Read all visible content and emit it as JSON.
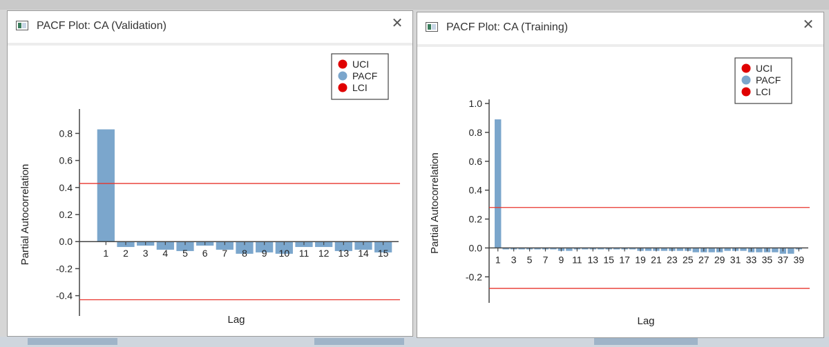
{
  "windows": [
    {
      "title": "PACF Plot: CA (Validation)",
      "chart_data": {
        "type": "bar",
        "ylabel": "Partial Autocorrelation",
        "xlabel": "Lag",
        "ylim": [
          -0.55,
          0.95
        ],
        "yticks": [
          -0.4,
          -0.2,
          0.0,
          0.2,
          0.4,
          0.6,
          0.8
        ],
        "ytick_labels": [
          "-0.4",
          "-0.2",
          "0.0",
          "0.2",
          "0.4",
          "0.6",
          "0.8"
        ],
        "x": [
          1,
          2,
          3,
          4,
          5,
          6,
          7,
          8,
          9,
          10,
          11,
          12,
          13,
          14,
          15
        ],
        "xtick_labels": [
          "1",
          "2",
          "3",
          "4",
          "5",
          "6",
          "7",
          "8",
          "9",
          "10",
          "11",
          "12",
          "13",
          "14",
          "15"
        ],
        "series": [
          {
            "name": "PACF",
            "color": "#7ba6cc",
            "values": [
              0.83,
              -0.04,
              -0.03,
              -0.06,
              -0.07,
              -0.03,
              -0.06,
              -0.09,
              -0.08,
              -0.09,
              -0.04,
              -0.04,
              -0.07,
              -0.06,
              -0.08
            ]
          },
          {
            "name": "UCI",
            "color": "#e8332a",
            "value": 0.43
          },
          {
            "name": "LCI",
            "color": "#e8332a",
            "value": -0.43
          }
        ],
        "legend": {
          "position": "top-right",
          "items": [
            {
              "label": "UCI",
              "color": "#e00000"
            },
            {
              "label": "PACF",
              "color": "#7ba6cc"
            },
            {
              "label": "LCI",
              "color": "#e00000"
            }
          ]
        }
      }
    },
    {
      "title": "PACF Plot: CA (Training)",
      "chart_data": {
        "type": "bar",
        "ylabel": "Partial Autocorrelation",
        "xlabel": "Lag",
        "ylim": [
          -0.38,
          1.0
        ],
        "yticks": [
          -0.2,
          0.0,
          0.2,
          0.4,
          0.6,
          0.8,
          1.0
        ],
        "ytick_labels": [
          "-0.2",
          "0.0",
          "0.2",
          "0.4",
          "0.6",
          "0.8",
          "1.0"
        ],
        "x": [
          1,
          2,
          3,
          4,
          5,
          6,
          7,
          8,
          9,
          10,
          11,
          12,
          13,
          14,
          15,
          16,
          17,
          18,
          19,
          20,
          21,
          22,
          23,
          24,
          25,
          26,
          27,
          28,
          29,
          30,
          31,
          32,
          33,
          34,
          35,
          36,
          37,
          38,
          39
        ],
        "xtick_labels": [
          "1",
          "3",
          "5",
          "7",
          "9",
          "11",
          "13",
          "15",
          "17",
          "19",
          "21",
          "23",
          "25",
          "27",
          "29",
          "31",
          "33",
          "35",
          "37",
          "39"
        ],
        "series": [
          {
            "name": "PACF",
            "color": "#7ba6cc",
            "values": [
              0.89,
              -0.01,
              -0.01,
              -0.01,
              -0.01,
              -0.01,
              -0.01,
              -0.01,
              -0.02,
              -0.02,
              -0.01,
              -0.01,
              -0.01,
              -0.01,
              -0.01,
              -0.01,
              -0.01,
              -0.01,
              -0.02,
              -0.02,
              -0.02,
              -0.02,
              -0.02,
              -0.02,
              -0.02,
              -0.03,
              -0.03,
              -0.03,
              -0.03,
              -0.02,
              -0.02,
              -0.02,
              -0.03,
              -0.03,
              -0.03,
              -0.03,
              -0.04,
              -0.04,
              -0.01
            ]
          },
          {
            "name": "UCI",
            "color": "#e8332a",
            "value": 0.28
          },
          {
            "name": "LCI",
            "color": "#e8332a",
            "value": -0.28
          }
        ],
        "legend": {
          "position": "top-right",
          "items": [
            {
              "label": "UCI",
              "color": "#e00000"
            },
            {
              "label": "PACF",
              "color": "#7ba6cc"
            },
            {
              "label": "LCI",
              "color": "#e00000"
            }
          ]
        }
      }
    }
  ]
}
